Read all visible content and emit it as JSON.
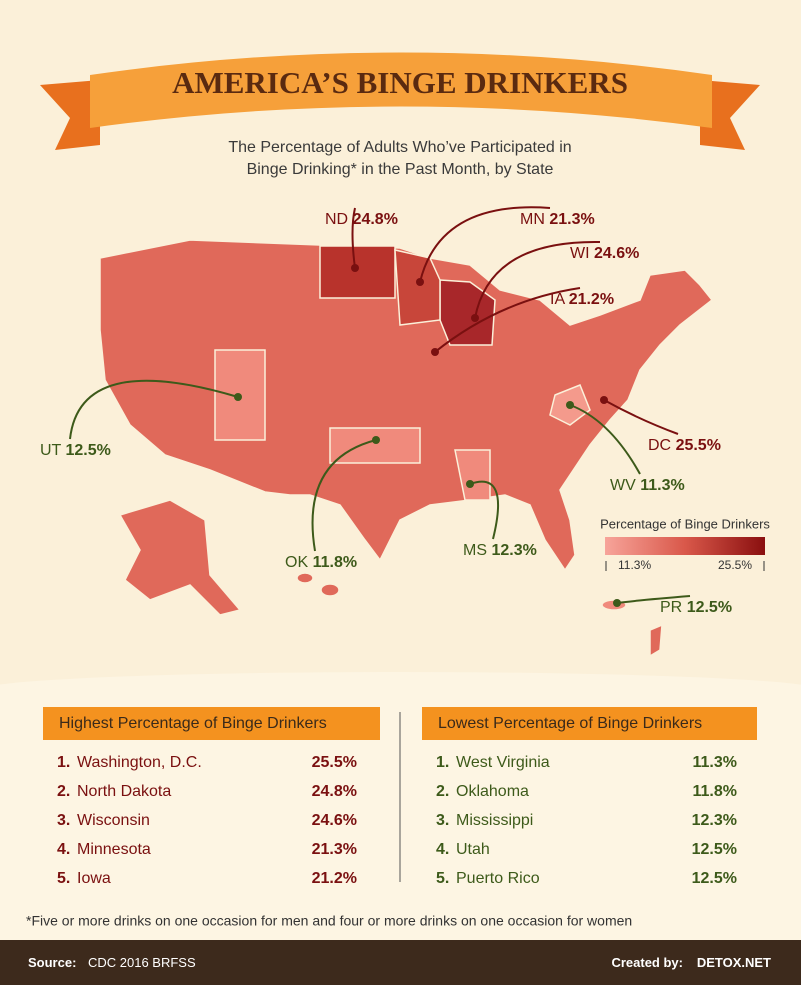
{
  "header": {
    "title": "AMERICA’S BINGE DRINKERS",
    "subtitle": [
      "The Percentage of Adults Who’ve Participated in",
      "Binge Drinking* in the Past Month, by State"
    ]
  },
  "map": {
    "callouts": [
      {
        "state": "ND",
        "value": "24.8%"
      },
      {
        "state": "MN",
        "value": "21.3%"
      },
      {
        "state": "WI",
        "value": "24.6%"
      },
      {
        "state": "IA",
        "value": "21.2%"
      },
      {
        "state": "UT",
        "value": "12.5%"
      },
      {
        "state": "DC",
        "value": "25.5%"
      },
      {
        "state": "WV",
        "value": "11.3%"
      },
      {
        "state": "OK",
        "value": "11.8%"
      },
      {
        "state": "MS",
        "value": "12.3%"
      },
      {
        "state": "PR",
        "value": "12.5%"
      }
    ]
  },
  "legend": {
    "title": "Percentage of Binge Drinkers",
    "min": "11.3%",
    "max": "25.5%"
  },
  "highest": {
    "title": "Highest Percentage of Binge Drinkers",
    "rows": [
      [
        "1.",
        "Washington, D.C.",
        "25.5%"
      ],
      [
        "2.",
        "North Dakota",
        "24.8%"
      ],
      [
        "3.",
        "Wisconsin",
        "24.6%"
      ],
      [
        "4.",
        "Minnesota",
        "21.3%"
      ],
      [
        "5.",
        "Iowa",
        "21.2%"
      ]
    ]
  },
  "lowest": {
    "title": "Lowest Percentage of Binge Drinkers",
    "rows": [
      [
        "1.",
        "West Virginia",
        "11.3%"
      ],
      [
        "2.",
        "Oklahoma",
        "11.8%"
      ],
      [
        "3.",
        "Mississippi",
        "12.3%"
      ],
      [
        "4.",
        "Utah",
        "12.5%"
      ],
      [
        "5.",
        "Puerto Rico",
        "12.5%"
      ]
    ]
  },
  "footnote": "*Five or more drinks on one occasion for men and four or more drinks on one occasion for women",
  "footer": {
    "source_label": "Source:",
    "source": "CDC 2016 BRFSS",
    "credit_label": "Created by:",
    "credit": "DETOX.NET"
  }
}
